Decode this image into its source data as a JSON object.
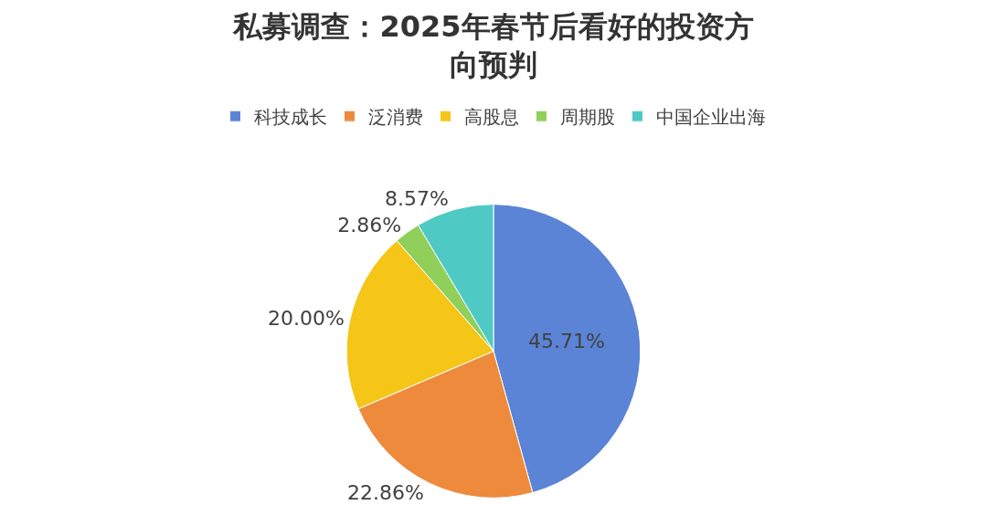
{
  "chart_data": {
    "type": "pie",
    "title": "私募调查：2025年春节后看好的投资方向预判",
    "categories": [
      "科技成长",
      "泛消费",
      "高股息",
      "周期股",
      "中国企业出海"
    ],
    "values": [
      45.71,
      22.86,
      20.0,
      2.86,
      8.57
    ],
    "value_labels": [
      "45.71%",
      "22.86%",
      "20.00%",
      "2.86%",
      "8.57%"
    ],
    "colors": [
      "#5b84d6",
      "#ee8a3c",
      "#f5c518",
      "#8fcf5a",
      "#4fc9c4"
    ],
    "legend": "top"
  }
}
